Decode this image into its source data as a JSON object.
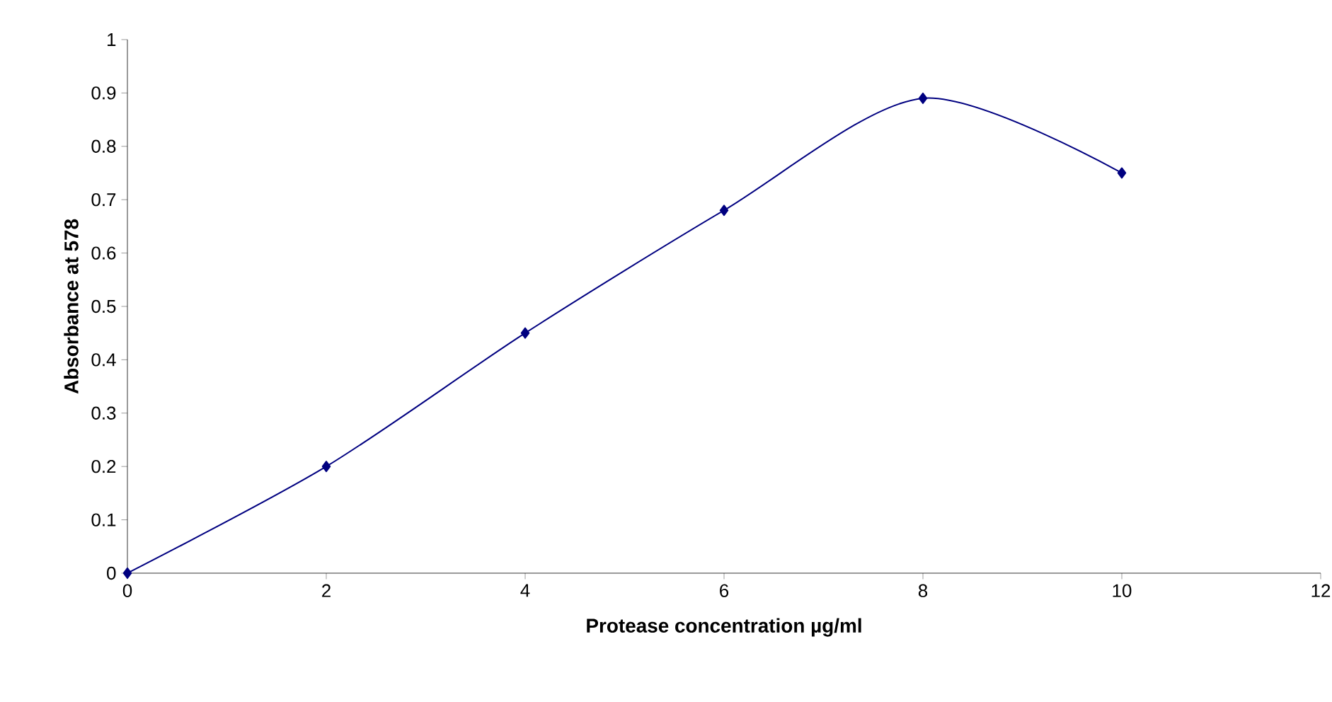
{
  "chart_data": {
    "type": "line",
    "xlabel": "Protease concentration µg/ml",
    "ylabel": "Absorbance at 578",
    "x": [
      0,
      2,
      4,
      6,
      8,
      10
    ],
    "series": [
      {
        "color": "#000080",
        "values": [
          0,
          0.2,
          0.45,
          0.68,
          0.89,
          0.75
        ]
      }
    ],
    "xlim": [
      0,
      12
    ],
    "xticks": [
      0,
      2,
      4,
      6,
      8,
      10,
      12
    ],
    "ylim": [
      0,
      1
    ],
    "yticks": [
      0,
      0.1,
      0.2,
      0.3,
      0.4,
      0.5,
      0.6,
      0.7,
      0.8,
      0.9,
      1
    ],
    "grid": false,
    "marker": "diamond",
    "line_style": "solid"
  }
}
